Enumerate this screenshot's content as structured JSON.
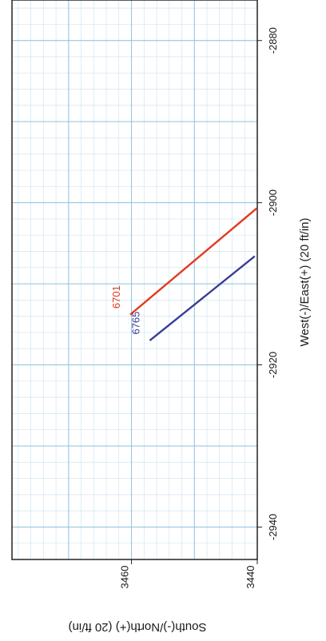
{
  "chart_data": {
    "type": "line",
    "xlabel": "West(-)/East(+) (20 ft/in)",
    "ylabel": "South(-)/North(+) (20 ft/in)",
    "xlim": [
      -2944,
      -2875
    ],
    "ylim": [
      3440,
      3479
    ],
    "x_ticks": [
      {
        "value": -2880,
        "label": "-2880"
      },
      {
        "value": -2900,
        "label": "-2900"
      },
      {
        "value": -2920,
        "label": "-2920"
      },
      {
        "value": -2940,
        "label": "-2940"
      }
    ],
    "y_ticks": [
      {
        "value": 3440,
        "label": "3440"
      },
      {
        "value": 3460,
        "label": "3460"
      }
    ],
    "grid": true,
    "series": [
      {
        "name": "6701",
        "color": "#e23a1f",
        "x": [
          -2913.8,
          -2900.7
        ],
        "y": [
          3460.2,
          3440.1
        ]
      },
      {
        "name": "6765",
        "color": "#3a3c96",
        "x": [
          -2917.0,
          -2906.6
        ],
        "y": [
          3457.1,
          3440.4
        ]
      }
    ]
  }
}
